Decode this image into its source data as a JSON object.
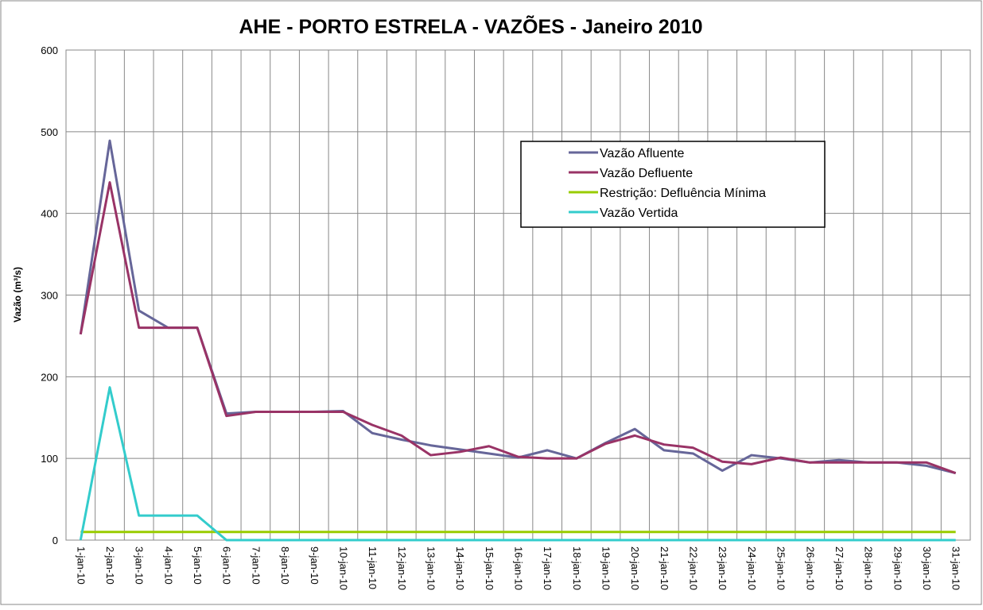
{
  "chart_data": {
    "type": "line",
    "title": "AHE - PORTO ESTRELA - VAZÕES - Janeiro 2010",
    "y_label": "Vazão (m³/s)",
    "categories": [
      "1-jan-10",
      "2-jan-10",
      "3-jan-10",
      "4-jan-10",
      "5-jan-10",
      "6-jan-10",
      "7-jan-10",
      "8-jan-10",
      "9-jan-10",
      "10-jan-10",
      "11-jan-10",
      "12-jan-10",
      "13-jan-10",
      "14-jan-10",
      "15-jan-10",
      "16-jan-10",
      "17-jan-10",
      "18-jan-10",
      "19-jan-10",
      "20-jan-10",
      "21-jan-10",
      "22-jan-10",
      "23-jan-10",
      "24-jan-10",
      "25-jan-10",
      "26-jan-10",
      "27-jan-10",
      "28-jan-10",
      "29-jan-10",
      "30-jan-10",
      "31-jan-10"
    ],
    "series": [
      {
        "name": "Vazão Afluente",
        "color": "#666699",
        "values": [
          252,
          489,
          281,
          260,
          260,
          155,
          157,
          157,
          157,
          158,
          131,
          123,
          116,
          111,
          106,
          101,
          110,
          100,
          119,
          136,
          110,
          106,
          85,
          104,
          100,
          95,
          98,
          95,
          95,
          91,
          82
        ]
      },
      {
        "name": "Vazão Defluente",
        "color": "#993366",
        "values": [
          252,
          438,
          260,
          260,
          260,
          152,
          157,
          157,
          157,
          157,
          141,
          128,
          104,
          108,
          115,
          102,
          100,
          100,
          118,
          128,
          117,
          113,
          96,
          93,
          101,
          95,
          95,
          95,
          95,
          95,
          82
        ]
      },
      {
        "name": "Restrição: Defluência Mínima",
        "color": "#99cc00",
        "values": [
          10,
          10,
          10,
          10,
          10,
          10,
          10,
          10,
          10,
          10,
          10,
          10,
          10,
          10,
          10,
          10,
          10,
          10,
          10,
          10,
          10,
          10,
          10,
          10,
          10,
          10,
          10,
          10,
          10,
          10,
          10
        ]
      },
      {
        "name": "Vazão Vertida",
        "color": "#33cccc",
        "values": [
          0,
          187,
          30,
          30,
          30,
          0,
          0,
          0,
          0,
          0,
          0,
          0,
          0,
          0,
          0,
          0,
          0,
          0,
          0,
          0,
          0,
          0,
          0,
          0,
          0,
          0,
          0,
          0,
          0,
          0,
          0
        ]
      }
    ],
    "ylim": [
      0,
      600
    ],
    "yticks": [
      0,
      100,
      200,
      300,
      400,
      500,
      600
    ],
    "grid": true,
    "legend": "top-right"
  }
}
